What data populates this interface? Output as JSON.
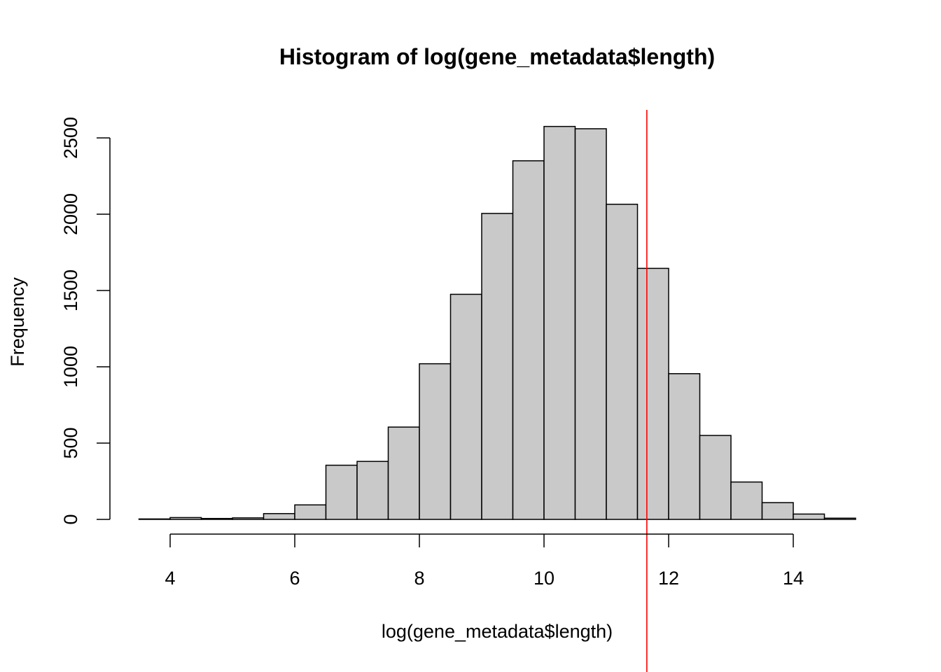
{
  "chart_data": {
    "type": "bar",
    "title": "Histogram of log(gene_metadata$length)",
    "xlabel": "log(gene_metadata$length)",
    "ylabel": "Frequency",
    "xlim": [
      3.5,
      15
    ],
    "ylim": [
      0,
      2600
    ],
    "x_ticks": [
      4,
      6,
      8,
      10,
      12,
      14
    ],
    "y_ticks": [
      0,
      500,
      1000,
      1500,
      2000,
      2500
    ],
    "bins": [
      {
        "start": 3.5,
        "end": 4.0,
        "count": 3
      },
      {
        "start": 4.0,
        "end": 4.5,
        "count": 12
      },
      {
        "start": 4.5,
        "end": 5.0,
        "count": 6
      },
      {
        "start": 5.0,
        "end": 5.5,
        "count": 10
      },
      {
        "start": 5.5,
        "end": 6.0,
        "count": 38
      },
      {
        "start": 6.0,
        "end": 6.5,
        "count": 95
      },
      {
        "start": 6.5,
        "end": 7.0,
        "count": 355
      },
      {
        "start": 7.0,
        "end": 7.5,
        "count": 380
      },
      {
        "start": 7.5,
        "end": 8.0,
        "count": 605
      },
      {
        "start": 8.0,
        "end": 8.5,
        "count": 1020
      },
      {
        "start": 8.5,
        "end": 9.0,
        "count": 1475
      },
      {
        "start": 9.0,
        "end": 9.5,
        "count": 2005
      },
      {
        "start": 9.5,
        "end": 10.0,
        "count": 2350
      },
      {
        "start": 10.0,
        "end": 10.5,
        "count": 2575
      },
      {
        "start": 10.5,
        "end": 11.0,
        "count": 2560
      },
      {
        "start": 11.0,
        "end": 11.5,
        "count": 2065
      },
      {
        "start": 11.5,
        "end": 12.0,
        "count": 1645
      },
      {
        "start": 12.0,
        "end": 12.5,
        "count": 955
      },
      {
        "start": 12.5,
        "end": 13.0,
        "count": 550
      },
      {
        "start": 13.0,
        "end": 13.5,
        "count": 245
      },
      {
        "start": 13.5,
        "end": 14.0,
        "count": 110
      },
      {
        "start": 14.0,
        "end": 14.5,
        "count": 35
      },
      {
        "start": 14.5,
        "end": 15.0,
        "count": 8
      }
    ],
    "reference_line_x": 11.65,
    "bar_fill": "#c9c9c9",
    "bar_stroke": "#000000",
    "reference_line_color": "#ff0000",
    "grid": false,
    "legend": "none"
  }
}
